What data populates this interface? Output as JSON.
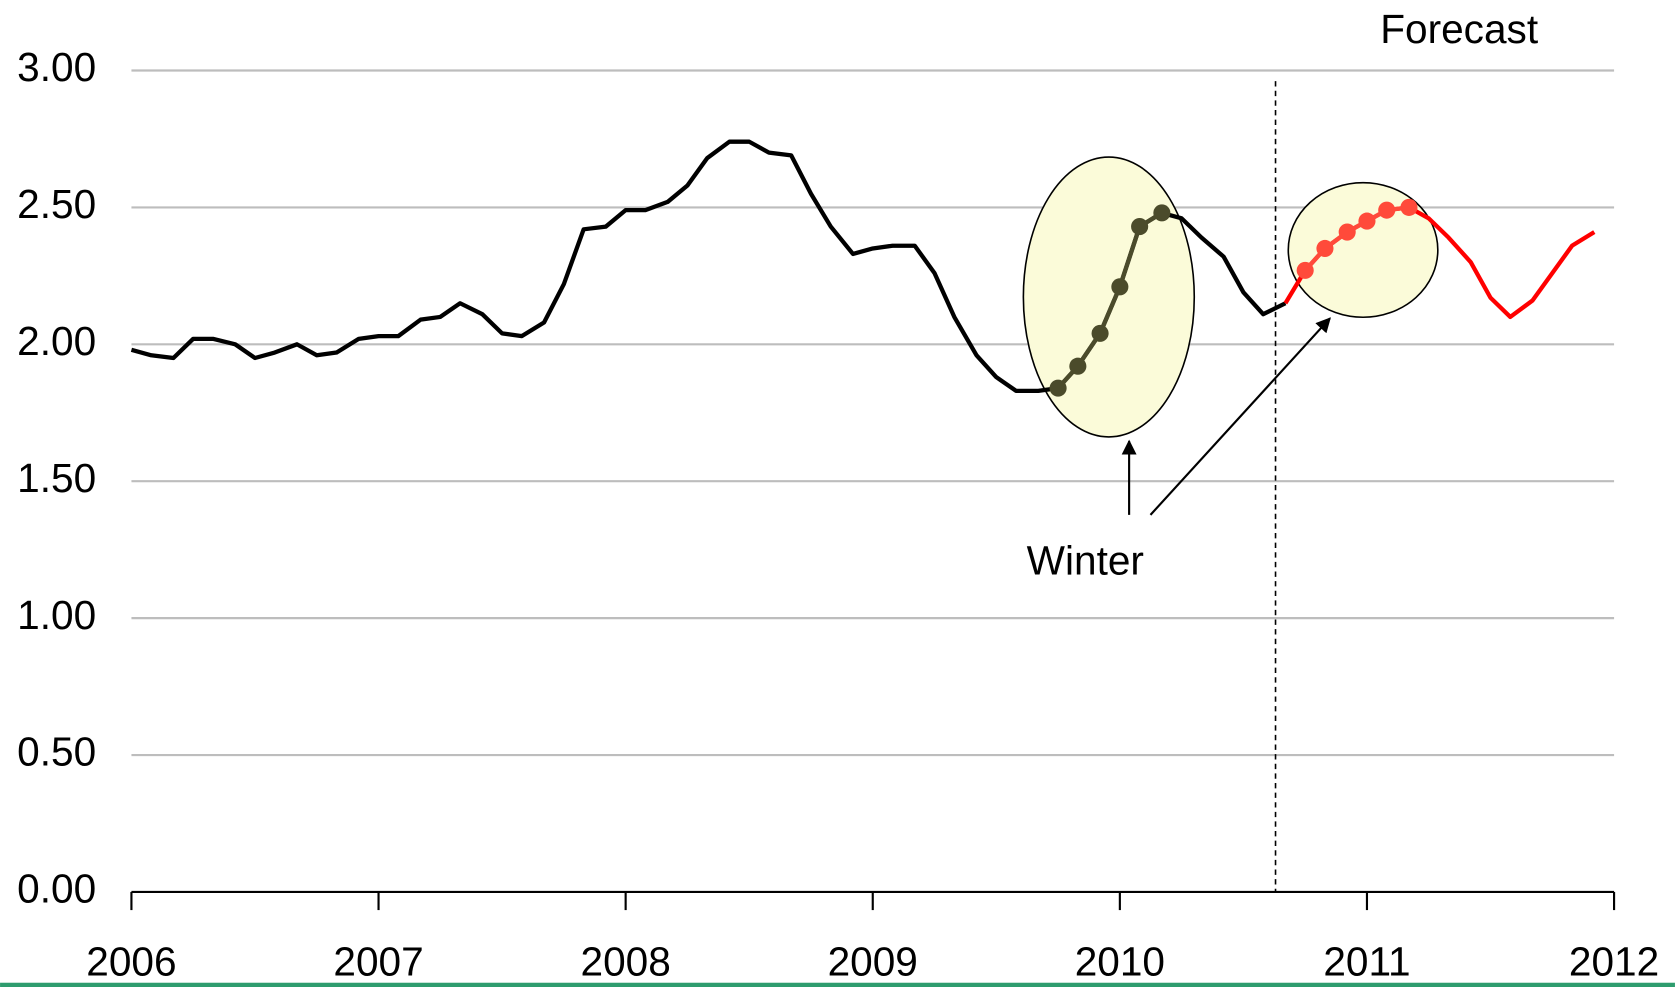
{
  "chart_data": {
    "type": "line",
    "annotations": {
      "forecast": "Forecast",
      "winter": "Winter"
    },
    "forecast_start": 2010.63,
    "x": [
      2006.0,
      2006.08,
      2006.17,
      2006.25,
      2006.33,
      2006.42,
      2006.5,
      2006.58,
      2006.67,
      2006.75,
      2006.83,
      2006.92,
      2007.0,
      2007.08,
      2007.17,
      2007.25,
      2007.33,
      2007.42,
      2007.5,
      2007.58,
      2007.67,
      2007.75,
      2007.83,
      2007.92,
      2008.0,
      2008.08,
      2008.17,
      2008.25,
      2008.33,
      2008.42,
      2008.5,
      2008.58,
      2008.67,
      2008.75,
      2008.83,
      2008.92,
      2009.0,
      2009.08,
      2009.17,
      2009.25,
      2009.33,
      2009.42,
      2009.5,
      2009.58,
      2009.67,
      2009.75,
      2009.83,
      2009.92,
      2010.0,
      2010.08,
      2010.17,
      2010.25,
      2010.33,
      2010.42,
      2010.5,
      2010.58,
      2010.67,
      2010.75,
      2010.83,
      2010.92,
      2011.0,
      2011.08,
      2011.17,
      2011.25,
      2011.33,
      2011.42,
      2011.5,
      2011.58,
      2011.67,
      2011.75,
      2011.83,
      2011.92
    ],
    "series": [
      {
        "color": "#000000",
        "marker_color": "#4b4b2b",
        "marker_range": [
          45,
          50
        ],
        "values": [
          1.98,
          1.96,
          1.95,
          2.02,
          2.02,
          2.0,
          1.95,
          1.97,
          2.0,
          1.96,
          1.97,
          2.02,
          2.03,
          2.03,
          2.09,
          2.1,
          2.15,
          2.11,
          2.04,
          2.03,
          2.08,
          2.22,
          2.42,
          2.43,
          2.49,
          2.49,
          2.52,
          2.58,
          2.68,
          2.74,
          2.74,
          2.7,
          2.69,
          2.55,
          2.43,
          2.33,
          2.35,
          2.36,
          2.36,
          2.26,
          2.1,
          1.96,
          1.88,
          1.83,
          1.83,
          1.84,
          1.92,
          2.04,
          2.21,
          2.43,
          2.48,
          2.46,
          2.39,
          2.32,
          2.19,
          2.11,
          2.15,
          null,
          null,
          null,
          null,
          null,
          null,
          null,
          null,
          null,
          null,
          null,
          null,
          null,
          null,
          null
        ]
      },
      {
        "color": "#ff0000",
        "marker_color": "#ff4a3a",
        "marker_range": [
          57,
          62
        ],
        "values": [
          null,
          null,
          null,
          null,
          null,
          null,
          null,
          null,
          null,
          null,
          null,
          null,
          null,
          null,
          null,
          null,
          null,
          null,
          null,
          null,
          null,
          null,
          null,
          null,
          null,
          null,
          null,
          null,
          null,
          null,
          null,
          null,
          null,
          null,
          null,
          null,
          null,
          null,
          null,
          null,
          null,
          null,
          null,
          null,
          null,
          null,
          null,
          null,
          null,
          null,
          null,
          null,
          null,
          null,
          null,
          null,
          2.15,
          2.27,
          2.35,
          2.41,
          2.45,
          2.49,
          2.5,
          2.46,
          2.39,
          2.3,
          2.17,
          2.1,
          2.16,
          2.26,
          2.36,
          2.41
        ]
      }
    ],
    "xlim": [
      2006,
      2012
    ],
    "xticks": [
      2006,
      2007,
      2008,
      2009,
      2010,
      2011,
      2012
    ],
    "ylim": [
      0,
      3
    ],
    "yticks": [
      {
        "value": 0,
        "label": "0.00"
      },
      {
        "value": 0.5,
        "label": "0.50"
      },
      {
        "value": 1,
        "label": "1.00"
      },
      {
        "value": 1.5,
        "label": "1.50"
      },
      {
        "value": 2,
        "label": "2.00"
      },
      {
        "value": 2.5,
        "label": "2.50"
      },
      {
        "value": 3,
        "label": "3.00"
      }
    ],
    "grid": true
  }
}
